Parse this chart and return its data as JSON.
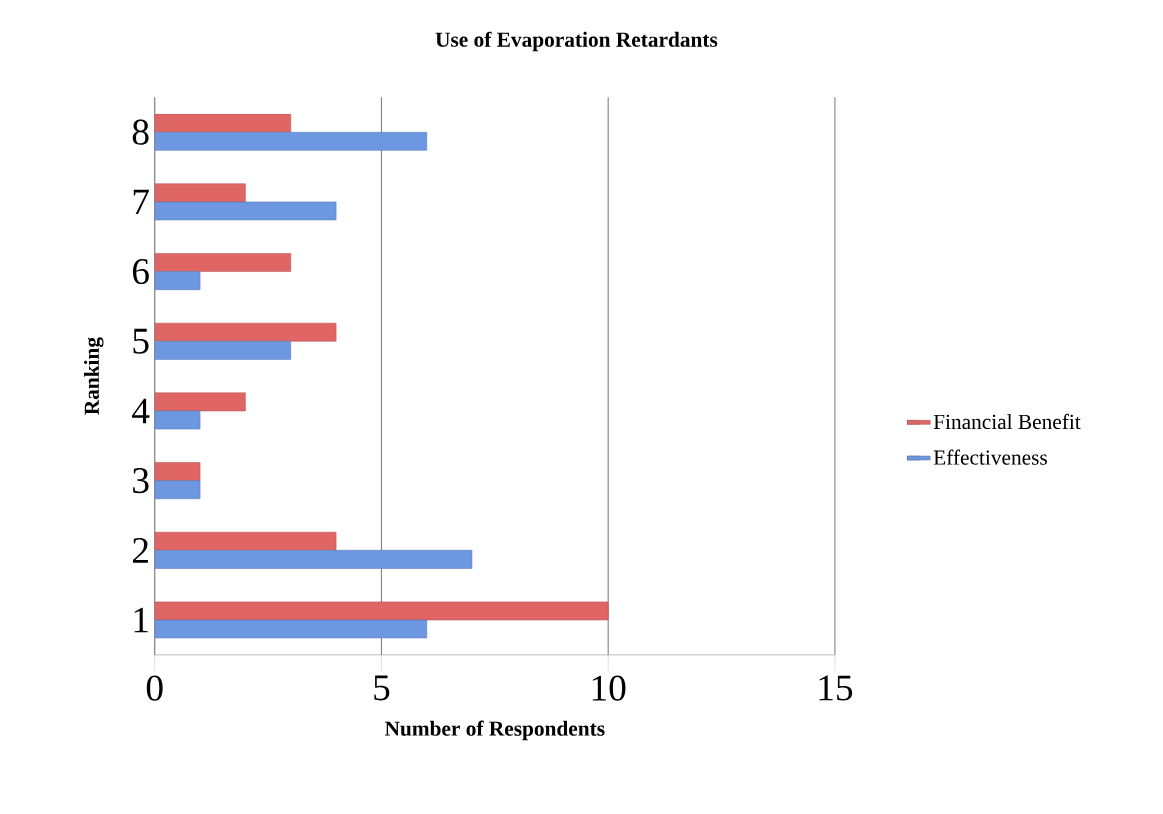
{
  "chart_data": {
    "type": "bar",
    "orientation": "horizontal",
    "title": "Use of Evaporation Retardants",
    "xlabel": "Number of Respondents",
    "ylabel": "Ranking",
    "categories": [
      "8",
      "7",
      "6",
      "5",
      "4",
      "3",
      "2",
      "1"
    ],
    "series": [
      {
        "name": "Financial Benefit",
        "color": "#e06666",
        "values": [
          3,
          2,
          3,
          4,
          2,
          1,
          4,
          10
        ]
      },
      {
        "name": "Effectiveness",
        "color": "#6d97e0",
        "values": [
          6,
          4,
          1,
          3,
          1,
          1,
          7,
          6
        ]
      }
    ],
    "xlim": [
      0,
      15
    ],
    "xticks": [
      0,
      5,
      10,
      15
    ],
    "grid": "x",
    "legend": "right"
  }
}
